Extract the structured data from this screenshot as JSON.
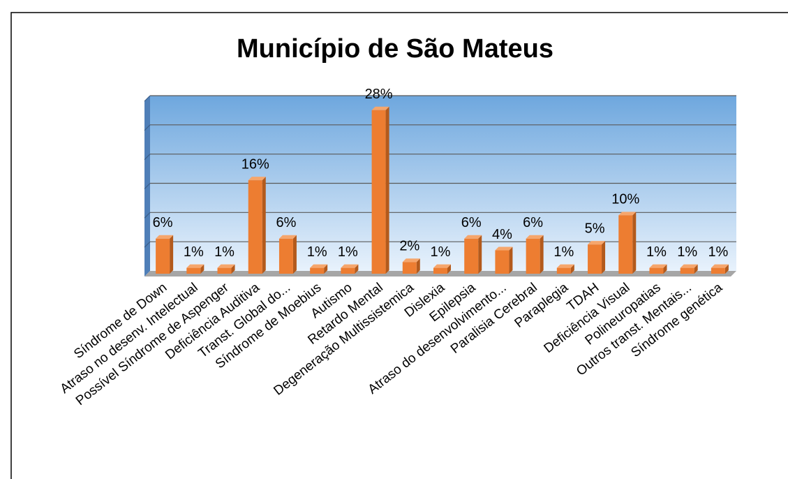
{
  "chart_data": {
    "type": "bar3d",
    "title": "Município de São Mateus",
    "categories": [
      "Síndrome de Down",
      "Atraso no desenv. Intelectual",
      "Possível Síndrome de Aspenger",
      "Deficiência Auditiva",
      "Transt. Global do...",
      "Síndrome de Moebius",
      "Autismo",
      "Retardo Mental",
      "Degeneração Multissistemica",
      "Dislexia",
      "Epilepsia",
      "Atraso do desenvolvimento...",
      "Paralisia Cerebral",
      "Paraplegia",
      "TDAH",
      "Deficiência Visual",
      "Polineuropatias",
      "Outros transt. Mentais...",
      "Síndrome genética"
    ],
    "values": [
      6,
      1,
      1,
      16,
      6,
      1,
      1,
      28,
      2,
      1,
      6,
      4,
      6,
      1,
      5,
      10,
      1,
      1,
      1
    ],
    "value_labels": [
      "6%",
      "1%",
      "1%",
      "16%",
      "6%",
      "1%",
      "1%",
      "28%",
      "2%",
      "1%",
      "6%",
      "4%",
      "6%",
      "1%",
      "5%",
      "10%",
      "1%",
      "1%",
      "1%"
    ],
    "color": "#ed7d31",
    "ylim": [
      0,
      30
    ],
    "yticks": [
      0,
      5,
      10,
      15,
      20,
      25,
      30
    ],
    "grid": true
  }
}
